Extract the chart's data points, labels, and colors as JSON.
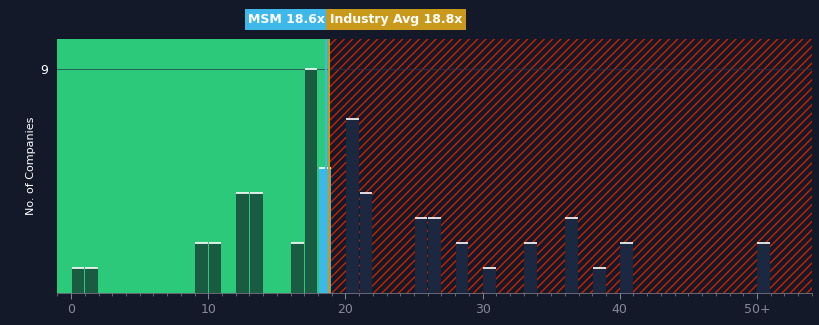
{
  "background_color": "#131928",
  "plot_bg_left_color": "#2dc97a",
  "plot_bg_right_color": "#131928",
  "bar_green_color": "#1a5c42",
  "bar_blue_color": "#3db8e8",
  "bar_dark_color": "#1c2840",
  "hatch_color": "#cc2200",
  "msm_value": 18.6,
  "industry_avg_value": 18.8,
  "msm_label": "MSM 18.6x",
  "industry_label": "Industry Avg 18.8x",
  "msm_label_bg": "#3db8e8",
  "industry_label_bg": "#c8991a",
  "ylabel": "No. of Companies",
  "ytick_label": "9",
  "xtick_labels": [
    "0",
    "10",
    "20",
    "30",
    "40",
    "50+"
  ],
  "xtick_positions": [
    0,
    10,
    20,
    30,
    40,
    50
  ],
  "ylim": [
    0,
    10.2
  ],
  "xlim": [
    -1,
    54
  ],
  "bin_edges": [
    0,
    1,
    2,
    3,
    4,
    5,
    6,
    7,
    8,
    9,
    10,
    11,
    12,
    13,
    14,
    15,
    16,
    17,
    18,
    19,
    20,
    21,
    22,
    23,
    24,
    25,
    26,
    27,
    28,
    29,
    30,
    31,
    32,
    33,
    34,
    35,
    36,
    37,
    38,
    39,
    40,
    41,
    42,
    43,
    44,
    45,
    46,
    47,
    48,
    49,
    50,
    51,
    52,
    53,
    54
  ],
  "bar_values": [
    1,
    1,
    0,
    0,
    0,
    0,
    0,
    0,
    0,
    2,
    2,
    0,
    4,
    4,
    0,
    0,
    2,
    9,
    5,
    0,
    7,
    4,
    0,
    0,
    0,
    3,
    3,
    0,
    2,
    0,
    1,
    0,
    0,
    2,
    0,
    0,
    3,
    0,
    1,
    0,
    2,
    0,
    0,
    0,
    0,
    0,
    0,
    0,
    0,
    0,
    2,
    0,
    0,
    0
  ],
  "msm_bin": 18,
  "industry_bin_edge": 18.8,
  "grid_color": "#2a3350",
  "tick_color": "#888899",
  "label_color": "#ffffff",
  "ytick_value": 9,
  "label_fontsize": 9,
  "ylabel_fontsize": 8
}
